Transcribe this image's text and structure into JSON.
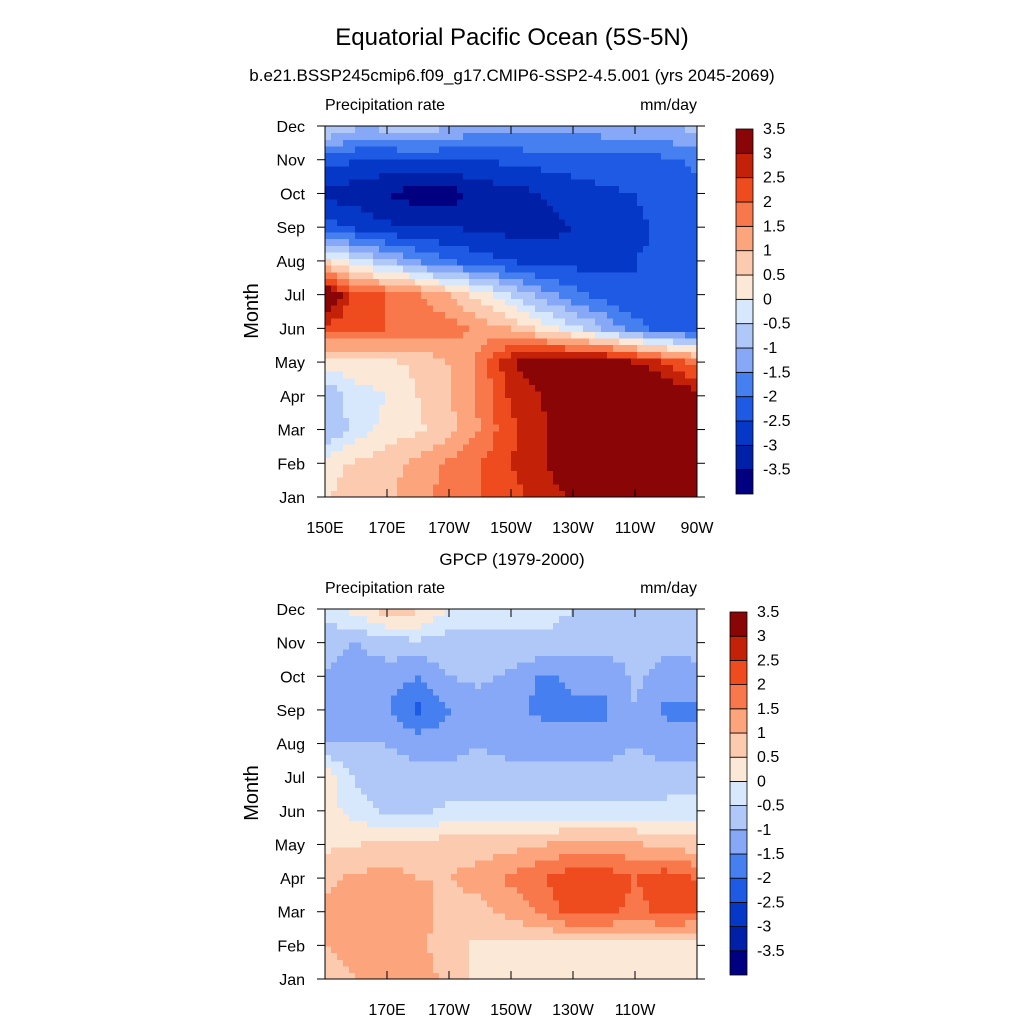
{
  "title": "Equatorial Pacific Ocean (5S-5N)",
  "chart_data": [
    {
      "type": "heatmap",
      "title": "b.e21.BSSP245cmip6.f09_g17.CMIP6-SSP2-4.5.001 (yrs 2045-2069)",
      "left_label": "Precipitation rate",
      "right_label": "mm/day",
      "xlabel": "",
      "ylabel": "Month",
      "xlim": [
        150,
        270
      ],
      "x_ticks": [
        {
          "value": 150,
          "label": "150E"
        },
        {
          "value": 170,
          "label": "170E"
        },
        {
          "value": 190,
          "label": "170W"
        },
        {
          "value": 210,
          "label": "150W"
        },
        {
          "value": 230,
          "label": "130W"
        },
        {
          "value": 250,
          "label": "110W"
        },
        {
          "value": 270,
          "label": "90W"
        }
      ],
      "y_ticks": [
        "Jan",
        "Feb",
        "Mar",
        "Apr",
        "May",
        "Jun",
        "Jul",
        "Aug",
        "Sep",
        "Oct",
        "Nov",
        "Dec"
      ],
      "colorbar": {
        "levels": [
          "-3.5",
          "-3",
          "-2.5",
          "-2",
          "-1.5",
          "-1",
          "-0.5",
          "0",
          "0.5",
          "1",
          "1.5",
          "2",
          "2.5",
          "3",
          "3.5"
        ],
        "colors": [
          "#000080",
          "#0020a8",
          "#0638c8",
          "#1e5ae4",
          "#4680f0",
          "#86a8f6",
          "#b0c8f8",
          "#d8e8fc",
          "#fce8d6",
          "#fccaae",
          "#fca47c",
          "#f8784c",
          "#ee4c1e",
          "#c42208",
          "#8a0606"
        ]
      },
      "x": [
        150,
        160,
        170,
        180,
        190,
        200,
        210,
        220,
        230,
        240,
        250,
        260,
        270
      ],
      "z": [
        [
          0.4,
          0.8,
          0.9,
          1.3,
          1.7,
          2.0,
          2.3,
          2.7,
          3.1,
          3.5,
          3.7,
          3.8,
          3.8
        ],
        [
          0.3,
          0.6,
          0.8,
          1.2,
          1.6,
          2.0,
          2.5,
          2.9,
          3.4,
          3.8,
          4.0,
          4.0,
          3.8
        ],
        [
          -1.0,
          -0.3,
          0.2,
          0.4,
          0.8,
          1.5,
          2.4,
          2.9,
          3.4,
          3.6,
          3.8,
          3.8,
          3.5
        ],
        [
          -1.0,
          -0.2,
          0.0,
          0.5,
          1.0,
          1.6,
          2.6,
          3.0,
          3.8,
          4.0,
          3.9,
          3.7,
          3.2
        ],
        [
          0.2,
          0.3,
          0.4,
          0.6,
          1.0,
          1.6,
          3.0,
          3.5,
          3.6,
          3.6,
          3.1,
          2.5,
          1.8
        ],
        [
          2.3,
          2.0,
          2.0,
          1.8,
          1.8,
          1.3,
          1.0,
          0.3,
          -0.3,
          -1.0,
          -1.8,
          -2.2,
          -2.4
        ],
        [
          3.8,
          2.2,
          2.0,
          1.6,
          1.0,
          0.3,
          -0.5,
          -1.2,
          -1.8,
          -2.2,
          -2.5,
          -2.5,
          -2.4
        ],
        [
          0.5,
          -0.3,
          -0.9,
          -1.5,
          -2.0,
          -2.3,
          -2.5,
          -2.7,
          -2.7,
          -2.6,
          -2.5,
          -2.4,
          -2.0
        ],
        [
          -2.2,
          -2.6,
          -2.9,
          -3.0,
          -3.0,
          -3.1,
          -3.2,
          -3.2,
          -3.0,
          -2.8,
          -2.6,
          -2.4,
          -2.0
        ],
        [
          -3.2,
          -3.3,
          -3.5,
          -3.8,
          -3.8,
          -3.3,
          -3.2,
          -3.0,
          -2.7,
          -2.6,
          -2.5,
          -2.3,
          -2.2
        ],
        [
          -2.2,
          -2.5,
          -2.6,
          -2.5,
          -2.5,
          -2.5,
          -2.4,
          -2.3,
          -2.3,
          -2.2,
          -2.2,
          -2.1,
          -1.9
        ],
        [
          -0.4,
          -0.9,
          -0.8,
          -0.6,
          -1.0,
          -1.2,
          -1.2,
          -1.2,
          -1.2,
          -1.2,
          -1.2,
          -1.0,
          -0.8
        ]
      ]
    },
    {
      "type": "heatmap",
      "title": "GPCP (1979-2000)",
      "left_label": "Precipitation rate",
      "right_label": "mm/day",
      "xlabel": "",
      "ylabel": "Month",
      "xlim": [
        150,
        270
      ],
      "x_ticks": [
        {
          "value": 170,
          "label": "170E"
        },
        {
          "value": 190,
          "label": "170W"
        },
        {
          "value": 210,
          "label": "150W"
        },
        {
          "value": 230,
          "label": "130W"
        },
        {
          "value": 250,
          "label": "110W"
        }
      ],
      "y_ticks": [
        "Jan",
        "Feb",
        "Mar",
        "Apr",
        "May",
        "Jun",
        "Jul",
        "Aug",
        "Sep",
        "Oct",
        "Nov",
        "Dec"
      ],
      "colorbar": {
        "levels": [
          "-3.5",
          "-3",
          "-2.5",
          "-2",
          "-1.5",
          "-1",
          "-0.5",
          "0",
          "0.5",
          "1",
          "1.5",
          "2",
          "2.5",
          "3",
          "3.5"
        ],
        "colors": [
          "#000080",
          "#0020a8",
          "#0638c8",
          "#1e5ae4",
          "#4680f0",
          "#86a8f6",
          "#b0c8f8",
          "#d8e8fc",
          "#fce8d6",
          "#fccaae",
          "#fca47c",
          "#f8784c",
          "#ee4c1e",
          "#c42208",
          "#8a0606"
        ]
      },
      "x": [
        150,
        160,
        170,
        180,
        190,
        200,
        210,
        220,
        230,
        240,
        250,
        260,
        270
      ],
      "z": [
        [
          0.6,
          1.0,
          1.2,
          1.4,
          0.8,
          0.4,
          0.3,
          0.3,
          0.2,
          0.3,
          0.3,
          0.3,
          0.3
        ],
        [
          1.0,
          1.2,
          1.4,
          1.2,
          0.6,
          0.4,
          0.3,
          0.3,
          0.3,
          0.3,
          0.3,
          0.3,
          0.3
        ],
        [
          1.1,
          1.4,
          1.3,
          1.2,
          0.8,
          0.8,
          1.2,
          1.6,
          2.2,
          2.2,
          1.8,
          2.2,
          2.0
        ],
        [
          0.9,
          1.1,
          1.2,
          1.0,
          1.0,
          1.2,
          1.6,
          2.0,
          2.4,
          2.4,
          2.0,
          2.4,
          2.0
        ],
        [
          0.4,
          0.5,
          0.6,
          0.7,
          0.8,
          0.8,
          0.8,
          1.0,
          1.2,
          1.2,
          1.1,
          0.9,
          0.7
        ],
        [
          0.2,
          -0.2,
          -0.6,
          -0.6,
          -0.4,
          -0.4,
          -0.4,
          -0.4,
          -0.3,
          -0.3,
          -0.3,
          -0.3,
          -0.2
        ],
        [
          0.4,
          -0.6,
          -0.8,
          -0.8,
          -0.8,
          -0.8,
          -0.8,
          -0.8,
          -0.8,
          -0.8,
          -0.8,
          -0.8,
          -0.8
        ],
        [
          -1.0,
          -1.0,
          -1.0,
          -1.2,
          -1.2,
          -1.0,
          -1.2,
          -1.2,
          -1.2,
          -1.2,
          -1.0,
          -1.2,
          -1.2
        ],
        [
          -1.2,
          -1.2,
          -1.5,
          -2.1,
          -1.5,
          -1.2,
          -1.4,
          -1.6,
          -1.6,
          -1.6,
          -1.0,
          -1.6,
          -1.6
        ],
        [
          -1.0,
          -1.2,
          -1.2,
          -1.5,
          -1.0,
          -0.9,
          -1.1,
          -1.6,
          -1.4,
          -1.4,
          -0.9,
          -1.2,
          -1.2
        ],
        [
          -0.9,
          -1.0,
          -0.8,
          -0.6,
          -0.8,
          -0.6,
          -0.6,
          -0.6,
          -0.8,
          -0.8,
          -0.8,
          -0.9,
          -0.8
        ],
        [
          -0.3,
          0.2,
          0.8,
          0.6,
          0.0,
          -0.3,
          -0.3,
          -0.3,
          -0.5,
          -0.5,
          -0.5,
          -0.5,
          -0.5
        ]
      ]
    }
  ]
}
